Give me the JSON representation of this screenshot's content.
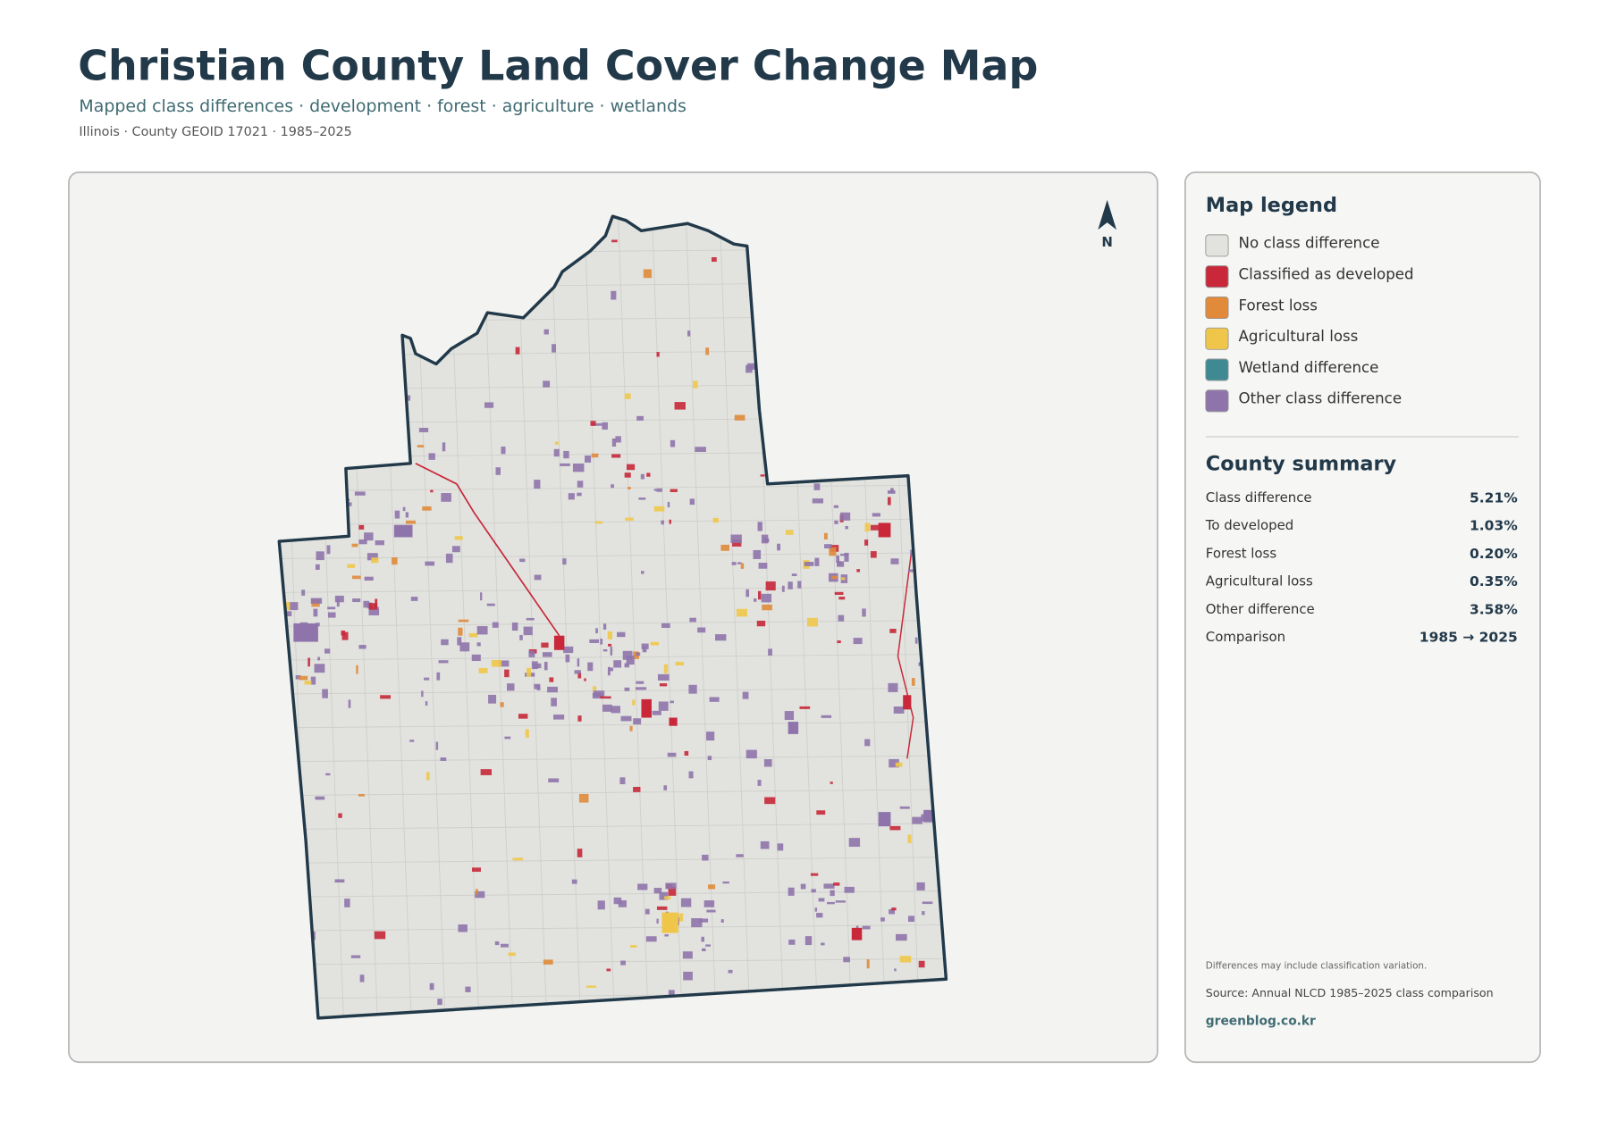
{
  "header": {
    "title": "Christian County Land Cover Change Map",
    "subtitle": "Mapped class differences · development · forest · agriculture · wetlands",
    "meta": "Illinois · County GEOID 17021 · 1985–2025"
  },
  "map": {
    "north_label": "N"
  },
  "legend": {
    "title": "Map legend",
    "items": [
      {
        "label": "No class difference",
        "color": "#e2e3df"
      },
      {
        "label": "Classified as developed",
        "color": "#c8283a"
      },
      {
        "label": "Forest loss",
        "color": "#e08a3a"
      },
      {
        "label": "Agricultural loss",
        "color": "#f0c64a"
      },
      {
        "label": "Wetland difference",
        "color": "#3f8a92"
      },
      {
        "label": "Other class difference",
        "color": "#8f74ab"
      }
    ]
  },
  "summary": {
    "title": "County summary",
    "rows": [
      {
        "label": "Class difference",
        "value": "5.21%"
      },
      {
        "label": "To developed",
        "value": "1.03%"
      },
      {
        "label": "Forest loss",
        "value": "0.20%"
      },
      {
        "label": "Agricultural loss",
        "value": "0.35%"
      },
      {
        "label": "Other difference",
        "value": "3.58%"
      },
      {
        "label": "Comparison",
        "value": "1985 → 2025"
      }
    ]
  },
  "footer": {
    "note": "Differences may include classification variation.",
    "source": "Source: Annual NLCD 1985–2025 class comparison",
    "credit": "greenblog.co.kr"
  }
}
